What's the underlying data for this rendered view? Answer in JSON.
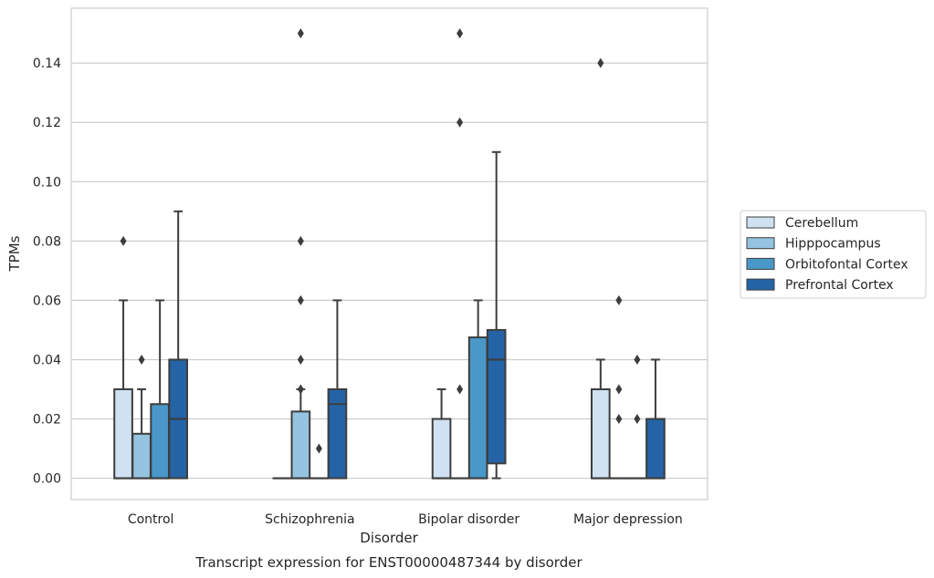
{
  "chart_data": {
    "type": "box",
    "title": "",
    "caption": "Transcript expression for ENST00000487344 by disorder",
    "xlabel": "Disorder",
    "ylabel": "TPMs",
    "ylim": [
      -0.0072,
      0.1585
    ],
    "yticks": [
      0.0,
      0.02,
      0.04,
      0.06,
      0.08,
      0.1,
      0.12,
      0.14
    ],
    "ytick_labels": [
      "0.00",
      "0.02",
      "0.04",
      "0.06",
      "0.08",
      "0.10",
      "0.12",
      "0.14"
    ],
    "grid": "horizontal",
    "legend_position": "right",
    "categories": [
      "Control",
      "Schizophrenia",
      "Bipolar disorder",
      "Major depression"
    ],
    "series": [
      {
        "name": "Cerebellum",
        "color": "#d0e1f2",
        "boxes": [
          {
            "q1": 0,
            "median": 0,
            "q3": 0.03,
            "whisker_low": 0,
            "whisker_high": 0.06,
            "outliers": [
              0.08
            ]
          },
          {
            "q1": 0,
            "median": 0,
            "q3": 0,
            "whisker_low": 0,
            "whisker_high": 0,
            "outliers": []
          },
          {
            "q1": 0,
            "median": 0,
            "q3": 0.02,
            "whisker_low": 0,
            "whisker_high": 0.03,
            "outliers": []
          },
          {
            "q1": 0,
            "median": 0,
            "q3": 0.03,
            "whisker_low": 0,
            "whisker_high": 0.04,
            "outliers": [
              0.14
            ]
          }
        ]
      },
      {
        "name": "Hipppocampus",
        "color": "#94c4df",
        "boxes": [
          {
            "q1": 0,
            "median": 0,
            "q3": 0.015,
            "whisker_low": 0,
            "whisker_high": 0.03,
            "outliers": [
              0.04
            ]
          },
          {
            "q1": 0,
            "median": 0,
            "q3": 0.0225,
            "whisker_low": 0,
            "whisker_high": 0.03,
            "outliers": [
              0.03,
              0.04,
              0.06,
              0.08,
              0.15
            ]
          },
          {
            "q1": 0,
            "median": 0,
            "q3": 0,
            "whisker_low": 0,
            "whisker_high": 0,
            "outliers": [
              0.03,
              0.12,
              0.15
            ]
          },
          {
            "q1": 0,
            "median": 0,
            "q3": 0,
            "whisker_low": 0,
            "whisker_high": 0,
            "outliers": [
              0.02,
              0.03,
              0.06
            ]
          }
        ]
      },
      {
        "name": "Orbitofontal Cortex",
        "color": "#4a98c9",
        "boxes": [
          {
            "q1": 0,
            "median": 0,
            "q3": 0.025,
            "whisker_low": 0,
            "whisker_high": 0.06,
            "outliers": []
          },
          {
            "q1": 0,
            "median": 0,
            "q3": 0,
            "whisker_low": 0,
            "whisker_high": 0,
            "outliers": [
              0.01
            ]
          },
          {
            "q1": 0,
            "median": 0,
            "q3": 0.0475,
            "whisker_low": 0,
            "whisker_high": 0.06,
            "outliers": []
          },
          {
            "q1": 0,
            "median": 0,
            "q3": 0,
            "whisker_low": 0,
            "whisker_high": 0,
            "outliers": [
              0.02,
              0.04
            ]
          }
        ]
      },
      {
        "name": "Prefrontal Cortex",
        "color": "#2464a6",
        "boxes": [
          {
            "q1": 0,
            "median": 0.02,
            "q3": 0.04,
            "whisker_low": 0,
            "whisker_high": 0.09,
            "outliers": []
          },
          {
            "q1": 0,
            "median": 0.025,
            "q3": 0.03,
            "whisker_low": 0,
            "whisker_high": 0.06,
            "outliers": []
          },
          {
            "q1": 0.005,
            "median": 0.04,
            "q3": 0.05,
            "whisker_low": 0,
            "whisker_high": 0.11,
            "outliers": []
          },
          {
            "q1": 0,
            "median": 0,
            "q3": 0.02,
            "whisker_low": 0,
            "whisker_high": 0.04,
            "outliers": []
          }
        ]
      }
    ]
  }
}
